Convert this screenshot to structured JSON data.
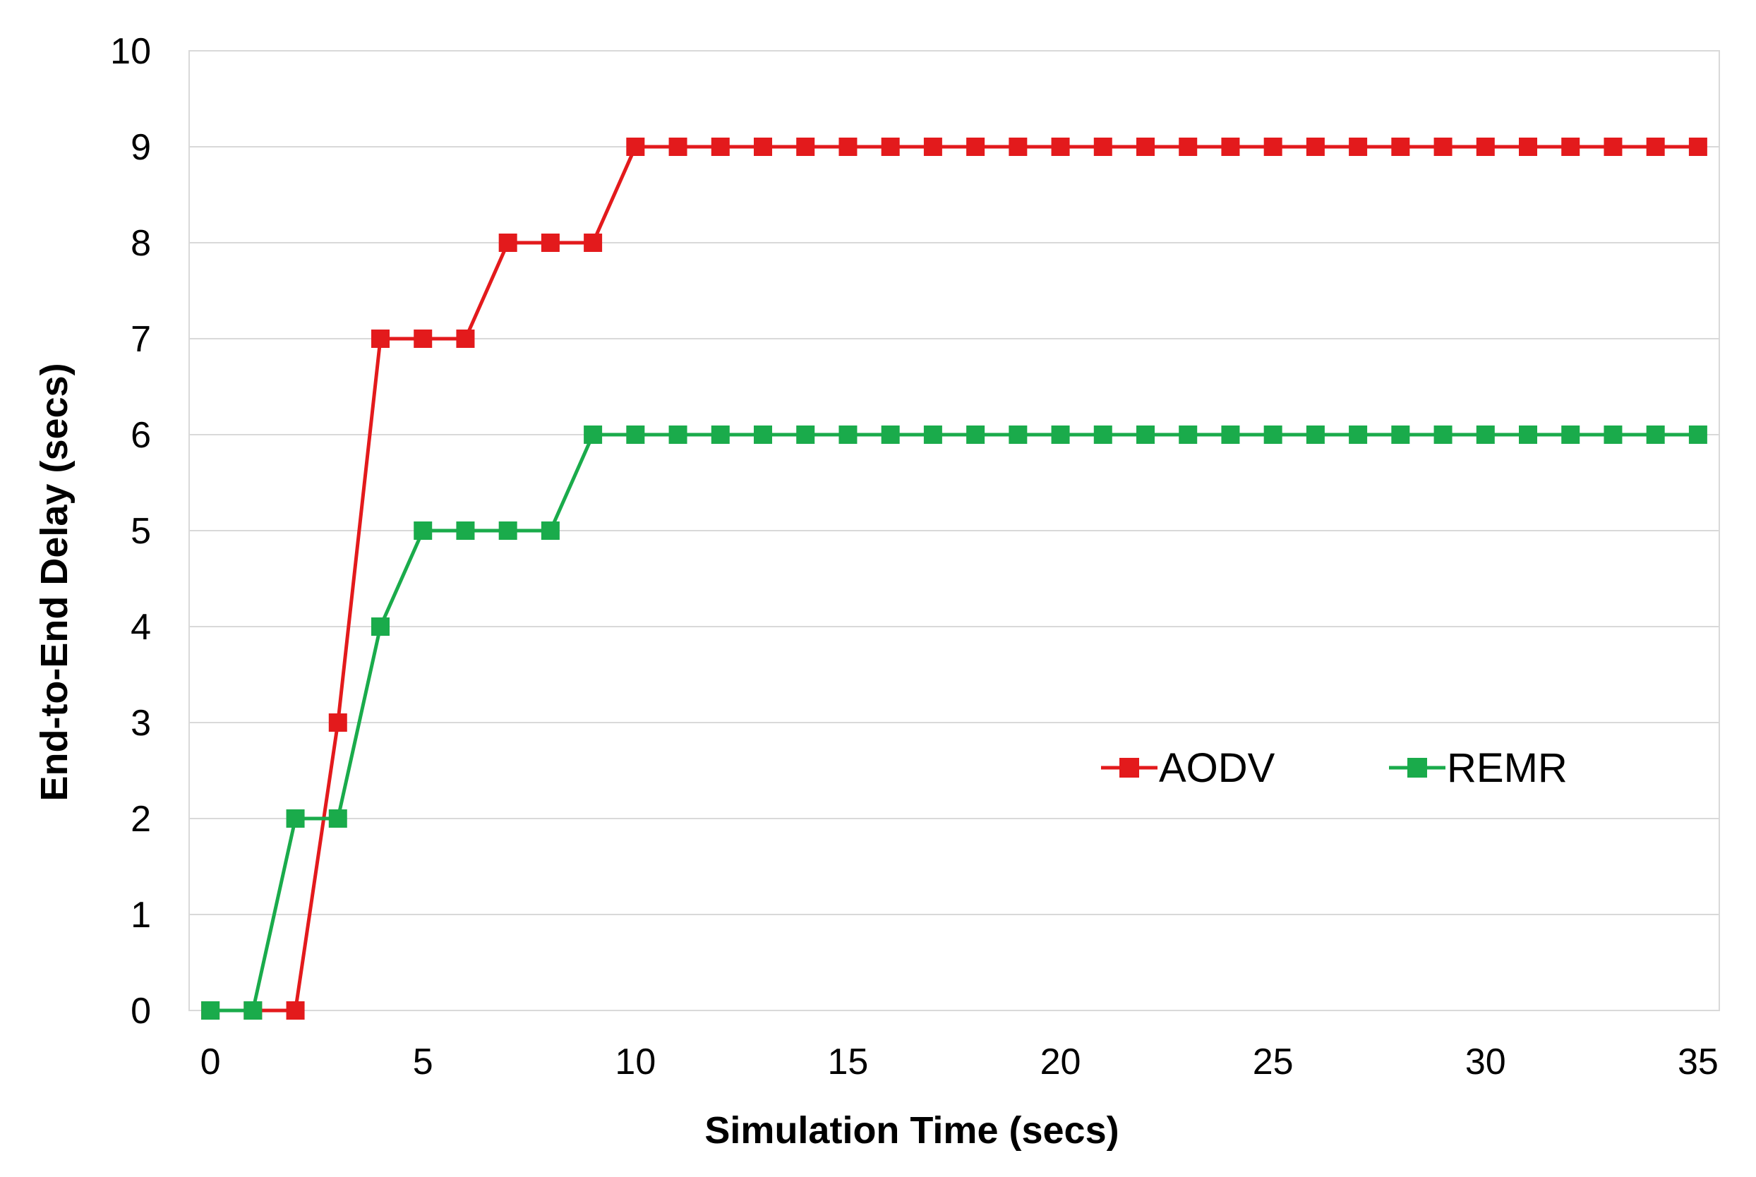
{
  "chart_data": {
    "type": "line",
    "title": "",
    "xlabel": "Simulation Time (secs)",
    "ylabel": "End-to-End Delay (secs)",
    "xlim": [
      -0.5,
      35.5
    ],
    "ylim": [
      0,
      10
    ],
    "xticks": [
      0,
      5,
      10,
      15,
      20,
      25,
      30,
      35
    ],
    "yticks": [
      0,
      1,
      2,
      3,
      4,
      5,
      6,
      7,
      8,
      9,
      10
    ],
    "grid": "horizontal",
    "legend_position": "center-right",
    "x": [
      0,
      1,
      2,
      3,
      4,
      5,
      6,
      7,
      8,
      9,
      10,
      11,
      12,
      13,
      14,
      15,
      16,
      17,
      18,
      19,
      20,
      21,
      22,
      23,
      24,
      25,
      26,
      27,
      28,
      29,
      30,
      31,
      32,
      33,
      34,
      35
    ],
    "series": [
      {
        "name": "AODV",
        "color": "#e31a1c",
        "marker": "square",
        "values": [
          0,
          0,
          0,
          3,
          7,
          7,
          7,
          8,
          8,
          8,
          9,
          9,
          9,
          9,
          9,
          9,
          9,
          9,
          9,
          9,
          9,
          9,
          9,
          9,
          9,
          9,
          9,
          9,
          9,
          9,
          9,
          9,
          9,
          9,
          9,
          9
        ]
      },
      {
        "name": "REMR",
        "color": "#1aab4b",
        "marker": "square",
        "values": [
          0,
          0,
          2,
          2,
          4,
          5,
          5,
          5,
          5,
          6,
          6,
          6,
          6,
          6,
          6,
          6,
          6,
          6,
          6,
          6,
          6,
          6,
          6,
          6,
          6,
          6,
          6,
          6,
          6,
          6,
          6,
          6,
          6,
          6,
          6,
          6
        ]
      }
    ],
    "colors": {
      "grid": "#d9d9d9",
      "plot_border": "#d9d9d9"
    }
  }
}
